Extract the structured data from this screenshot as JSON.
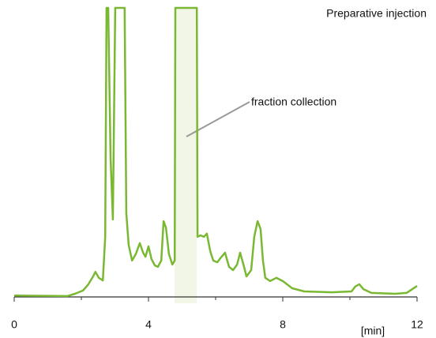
{
  "chart_data": {
    "type": "line",
    "title": "Preparative injection",
    "xlabel": "[min]",
    "annotation": "fraction collection",
    "highlight": [
      4.78,
      5.44
    ],
    "highlight_color": "#f1f6e6",
    "xlim": [
      0,
      12
    ],
    "ylim": [
      0,
      100
    ],
    "xticks": [
      0,
      4,
      8,
      12
    ],
    "xminorticks": [
      2,
      6,
      10
    ],
    "series": [
      {
        "name": "Preparative injection",
        "color": "#7ab833",
        "x": [
          0,
          1.58,
          1.81,
          2.05,
          2.21,
          2.35,
          2.42,
          2.52,
          2.64,
          2.71,
          2.75,
          2.8,
          2.87,
          2.94,
          3.01,
          3.29,
          3.34,
          3.41,
          3.51,
          3.62,
          3.74,
          3.84,
          3.91,
          4.0,
          4.09,
          4.19,
          4.28,
          4.38,
          4.45,
          4.52,
          4.61,
          4.71,
          4.78,
          4.8,
          5.44,
          5.46,
          5.55,
          5.65,
          5.74,
          5.84,
          5.93,
          6.05,
          6.16,
          6.28,
          6.4,
          6.52,
          6.64,
          6.73,
          6.82,
          6.92,
          7.06,
          7.15,
          7.25,
          7.34,
          7.41,
          7.48,
          7.62,
          7.81,
          8.0,
          8.28,
          8.64,
          9.46,
          10.05,
          10.16,
          10.28,
          10.4,
          10.64,
          11.34,
          11.69,
          12
        ],
        "values": [
          0.5,
          0.3,
          1.1,
          2.2,
          4.4,
          7.1,
          8.7,
          6.6,
          5.7,
          20.8,
          100,
          100,
          48,
          26.8,
          100,
          100,
          29,
          18,
          12.6,
          14.8,
          18.6,
          15.3,
          13.9,
          17.5,
          13.1,
          10.9,
          10.4,
          12.6,
          26.2,
          24,
          14.8,
          11.2,
          12.6,
          100,
          100,
          20.8,
          21.3,
          20.8,
          21.9,
          15.8,
          12.6,
          12,
          13.7,
          15.3,
          10.4,
          9.3,
          11.2,
          15.3,
          11.5,
          7.1,
          9.3,
          20.8,
          26.2,
          23.5,
          12.6,
          6.6,
          5.5,
          6.6,
          5.5,
          3.0,
          1.9,
          1.6,
          1.9,
          3.6,
          4.4,
          2.7,
          1.4,
          1.1,
          1.4,
          3.8
        ]
      }
    ]
  }
}
